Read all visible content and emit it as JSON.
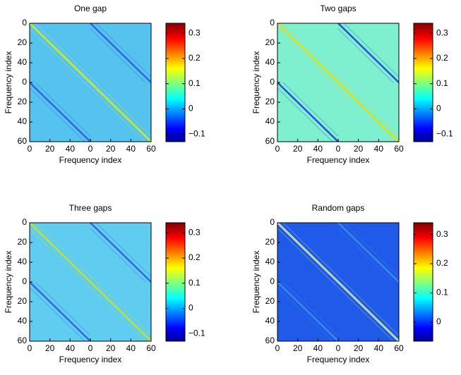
{
  "chart_data": [
    {
      "type": "heatmap",
      "title": "One gap",
      "xlabel": "Frequency index",
      "ylabel": "Frequency index",
      "xlim": [
        0,
        120
      ],
      "ylim": [
        0,
        120
      ],
      "xticks": [
        0,
        20,
        40,
        {
          "value": 60,
          "label": "0"
        },
        {
          "value": 80,
          "label": "20"
        },
        {
          "value": 100,
          "label": "40"
        },
        {
          "value": 120,
          "label": "60"
        }
      ],
      "yticks": [
        0,
        20,
        40,
        {
          "value": 60,
          "label": "0"
        },
        {
          "value": 80,
          "label": "20"
        },
        {
          "value": 100,
          "label": "40"
        },
        {
          "value": 120,
          "label": "60"
        }
      ],
      "colors": {
        "base": "#55c3ee",
        "diagonal": "#c8e838",
        "offdiagonal": "#2a5ee0"
      },
      "colorbar": {
        "clim": [
          -0.13,
          0.34
        ],
        "ticks": [
          {
            "value": -0.1,
            "label": "−0.1"
          },
          0,
          0.1,
          0.2,
          0.3
        ]
      }
    },
    {
      "type": "heatmap",
      "title": "Two gaps",
      "xlabel": "Frequency index",
      "ylabel": "Frequency index",
      "xlim": [
        0,
        120
      ],
      "ylim": [
        0,
        120
      ],
      "xticks": [
        0,
        20,
        40,
        {
          "value": 60,
          "label": "0"
        },
        {
          "value": 80,
          "label": "20"
        },
        {
          "value": 100,
          "label": "40"
        },
        {
          "value": 120,
          "label": "60"
        }
      ],
      "yticks": [
        0,
        20,
        40,
        {
          "value": 60,
          "label": "0"
        },
        {
          "value": 80,
          "label": "20"
        },
        {
          "value": 100,
          "label": "40"
        },
        {
          "value": 120,
          "label": "60"
        }
      ],
      "colors": {
        "base": "#7ef0d0",
        "diagonal": "#d8e020",
        "offdiagonal": "#2040d8"
      },
      "colorbar": {
        "clim": [
          -0.13,
          0.34
        ],
        "ticks": [
          {
            "value": -0.1,
            "label": "−0.1"
          },
          0,
          0.1,
          0.2,
          0.3
        ]
      }
    },
    {
      "type": "heatmap",
      "title": "Three gaps",
      "xlabel": "Frequency index",
      "ylabel": "Frequency index",
      "xlim": [
        0,
        120
      ],
      "ylim": [
        0,
        120
      ],
      "xticks": [
        0,
        20,
        40,
        {
          "value": 60,
          "label": "0"
        },
        {
          "value": 80,
          "label": "20"
        },
        {
          "value": 100,
          "label": "40"
        },
        {
          "value": 120,
          "label": "60"
        }
      ],
      "yticks": [
        0,
        20,
        40,
        {
          "value": 60,
          "label": "0"
        },
        {
          "value": 80,
          "label": "20"
        },
        {
          "value": 100,
          "label": "40"
        },
        {
          "value": 120,
          "label": "60"
        }
      ],
      "colors": {
        "base": "#60cdf0",
        "diagonal": "#b8e040",
        "offdiagonal": "#2a5ee0"
      },
      "colorbar": {
        "clim": [
          -0.13,
          0.34
        ],
        "ticks": [
          {
            "value": -0.1,
            "label": "−0.1"
          },
          0,
          0.1,
          0.2,
          0.3
        ]
      }
    },
    {
      "type": "heatmap",
      "title": "Random gaps",
      "xlabel": "Frequency index",
      "ylabel": "Frequency index",
      "xlim": [
        0,
        120
      ],
      "ylim": [
        0,
        120
      ],
      "xticks": [
        0,
        20,
        40,
        {
          "value": 60,
          "label": "0"
        },
        {
          "value": 80,
          "label": "20"
        },
        {
          "value": 100,
          "label": "40"
        },
        {
          "value": 120,
          "label": "60"
        }
      ],
      "yticks": [
        0,
        20,
        40,
        {
          "value": 60,
          "label": "0"
        },
        {
          "value": 80,
          "label": "20"
        },
        {
          "value": 100,
          "label": "40"
        },
        {
          "value": 120,
          "label": "60"
        }
      ],
      "colors": {
        "base": "#1f5ae8",
        "diagonal": "#c8e8a0",
        "offdiagonal": "#3a8cf0"
      },
      "colorbar": {
        "clim": [
          -0.065,
          0.34
        ],
        "ticks": [
          0,
          0.1,
          0.2,
          0.3
        ]
      }
    }
  ]
}
